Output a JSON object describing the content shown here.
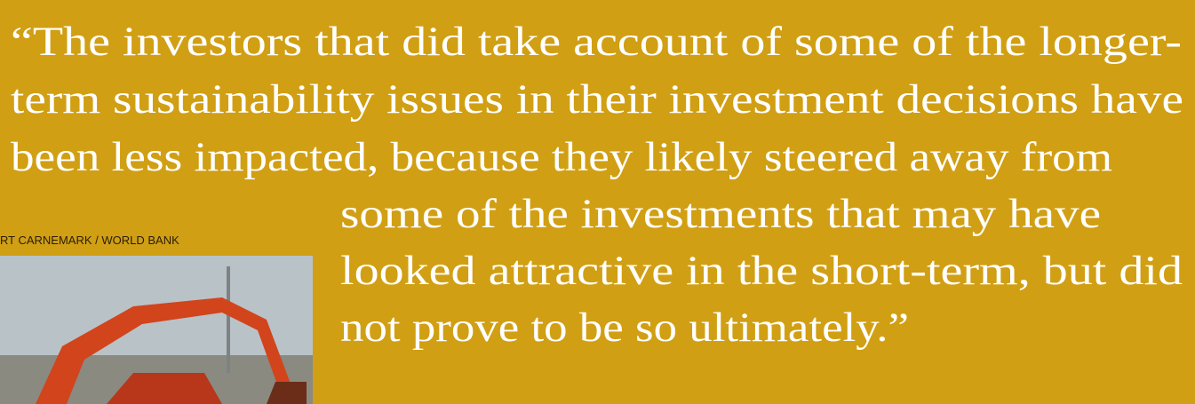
{
  "quote": {
    "lines": [
      "“The investors that did take account of some of the longer-",
      "term sustainability issues in their investment decisions have",
      "been less impacted, because they likely steered away from",
      "some of the investments that may have",
      "looked attractive in the short-term, but did",
      "not prove to be so ultimately.”"
    ]
  },
  "photo": {
    "credit": "RT CARNEMARK / WORLD BANK"
  }
}
